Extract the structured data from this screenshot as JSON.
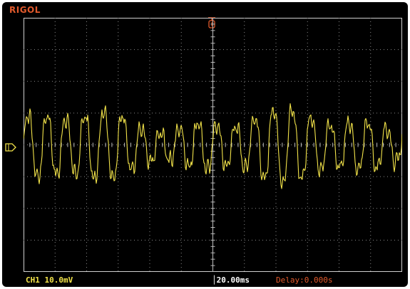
{
  "brand": "RIGOL",
  "status": {
    "channel": "CH1",
    "volts_per_div": "10.0mV",
    "timebase": "20.00ms",
    "delay": "Delay:0.000s"
  },
  "colors": {
    "background": "#000000",
    "trace": "#f3e44a",
    "brand": "#e25a2c",
    "grid": "#8a8a8a"
  },
  "markers": {
    "ground_icon": "channel-ground-marker-icon",
    "trigger_icon": "trigger-position-marker-icon"
  }
}
